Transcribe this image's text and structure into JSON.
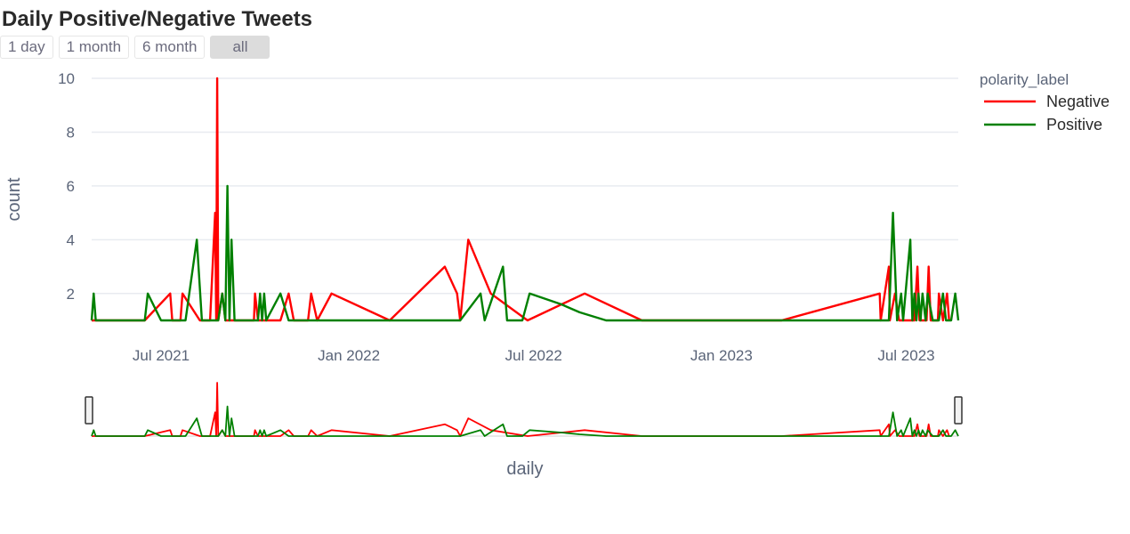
{
  "chart_data": {
    "type": "line",
    "title": "Daily Positive/Negative Tweets",
    "xlabel": "daily",
    "ylabel": "count",
    "x_range": [
      "2021-04-24",
      "2023-08-21"
    ],
    "ylim": [
      1,
      10
    ],
    "y_ticks": [
      2,
      4,
      6,
      8,
      10
    ],
    "x_ticks": [
      {
        "date": "2021-07-01",
        "label": "Jul 2021"
      },
      {
        "date": "2022-01-01",
        "label": "Jan 2022"
      },
      {
        "date": "2022-07-01",
        "label": "Jul 2022"
      },
      {
        "date": "2023-01-01",
        "label": "Jan 2023"
      },
      {
        "date": "2023-07-01",
        "label": "Jul 2023"
      }
    ],
    "grid": true,
    "legend_title": "polarity_label",
    "legend_position": "top-right",
    "range_selector": [
      "1 day",
      "1 month",
      "6 month",
      "all"
    ],
    "range_selector_active": "all",
    "rangeslider": true,
    "series": [
      {
        "name": "Negative",
        "color": "#ff0000",
        "points": [
          [
            "2021-04-24",
            1
          ],
          [
            "2021-06-15",
            1
          ],
          [
            "2021-07-10",
            2
          ],
          [
            "2021-07-12",
            1
          ],
          [
            "2021-07-20",
            1
          ],
          [
            "2021-07-22",
            2
          ],
          [
            "2021-08-08",
            1
          ],
          [
            "2021-08-18",
            1
          ],
          [
            "2021-08-23",
            5
          ],
          [
            "2021-08-24",
            1
          ],
          [
            "2021-08-25",
            10
          ],
          [
            "2021-08-26",
            1
          ],
          [
            "2021-08-30",
            2
          ],
          [
            "2021-09-02",
            1
          ],
          [
            "2021-09-30",
            1
          ],
          [
            "2021-10-01",
            2
          ],
          [
            "2021-10-04",
            1
          ],
          [
            "2021-10-18",
            1
          ],
          [
            "2021-10-26",
            1
          ],
          [
            "2021-11-03",
            2
          ],
          [
            "2021-11-08",
            1
          ],
          [
            "2021-11-22",
            1
          ],
          [
            "2021-11-25",
            2
          ],
          [
            "2021-12-01",
            1
          ],
          [
            "2021-12-15",
            2
          ],
          [
            "2022-02-10",
            1
          ],
          [
            "2022-04-05",
            3
          ],
          [
            "2022-04-17",
            2
          ],
          [
            "2022-04-20",
            1
          ],
          [
            "2022-04-28",
            4
          ],
          [
            "2022-05-20",
            2
          ],
          [
            "2022-06-25",
            1
          ],
          [
            "2022-08-20",
            2
          ],
          [
            "2022-10-15",
            1
          ],
          [
            "2023-03-01",
            1
          ],
          [
            "2023-06-05",
            2
          ],
          [
            "2023-06-06",
            1
          ],
          [
            "2023-06-14",
            3
          ],
          [
            "2023-06-15",
            1
          ],
          [
            "2023-06-20",
            2
          ],
          [
            "2023-06-24",
            1
          ],
          [
            "2023-07-09",
            1
          ],
          [
            "2023-07-12",
            3
          ],
          [
            "2023-07-14",
            1
          ],
          [
            "2023-07-21",
            1
          ],
          [
            "2023-07-23",
            3
          ],
          [
            "2023-07-25",
            1
          ],
          [
            "2023-08-01",
            1
          ],
          [
            "2023-08-02",
            2
          ],
          [
            "2023-08-06",
            1
          ],
          [
            "2023-08-10",
            2
          ],
          [
            "2023-08-12",
            1
          ]
        ]
      },
      {
        "name": "Positive",
        "color": "#008000",
        "points": [
          [
            "2021-04-24",
            1
          ],
          [
            "2021-04-26",
            2
          ],
          [
            "2021-04-28",
            1
          ],
          [
            "2021-06-15",
            1
          ],
          [
            "2021-06-18",
            2
          ],
          [
            "2021-07-01",
            1
          ],
          [
            "2021-07-25",
            1
          ],
          [
            "2021-08-05",
            4
          ],
          [
            "2021-08-10",
            1
          ],
          [
            "2021-08-26",
            1
          ],
          [
            "2021-08-30",
            2
          ],
          [
            "2021-09-02",
            1
          ],
          [
            "2021-09-04",
            6
          ],
          [
            "2021-09-06",
            1
          ],
          [
            "2021-09-08",
            4
          ],
          [
            "2021-09-11",
            1
          ],
          [
            "2021-10-04",
            1
          ],
          [
            "2021-10-06",
            2
          ],
          [
            "2021-10-08",
            1
          ],
          [
            "2021-10-10",
            2
          ],
          [
            "2021-10-12",
            1
          ],
          [
            "2021-10-26",
            2
          ],
          [
            "2021-11-03",
            1
          ],
          [
            "2022-04-20",
            1
          ],
          [
            "2022-05-10",
            2
          ],
          [
            "2022-05-14",
            1
          ],
          [
            "2022-06-01",
            3
          ],
          [
            "2022-06-05",
            1
          ],
          [
            "2022-06-20",
            1
          ],
          [
            "2022-06-27",
            2
          ],
          [
            "2022-07-28",
            1.6
          ],
          [
            "2022-08-15",
            1.3
          ],
          [
            "2022-09-10",
            1
          ],
          [
            "2023-06-05",
            1
          ],
          [
            "2023-06-14",
            1
          ],
          [
            "2023-06-18",
            5
          ],
          [
            "2023-06-22",
            1
          ],
          [
            "2023-06-26",
            2
          ],
          [
            "2023-06-28",
            1
          ],
          [
            "2023-07-05",
            4
          ],
          [
            "2023-07-07",
            1
          ],
          [
            "2023-07-09",
            2
          ],
          [
            "2023-07-11",
            1
          ],
          [
            "2023-07-13",
            2
          ],
          [
            "2023-07-15",
            1
          ],
          [
            "2023-07-17",
            2
          ],
          [
            "2023-07-20",
            1
          ],
          [
            "2023-07-22",
            2
          ],
          [
            "2023-07-27",
            1
          ],
          [
            "2023-08-02",
            1
          ],
          [
            "2023-08-06",
            2
          ],
          [
            "2023-08-09",
            1
          ],
          [
            "2023-08-14",
            1
          ],
          [
            "2023-08-18",
            2
          ],
          [
            "2023-08-21",
            1
          ]
        ]
      }
    ]
  }
}
